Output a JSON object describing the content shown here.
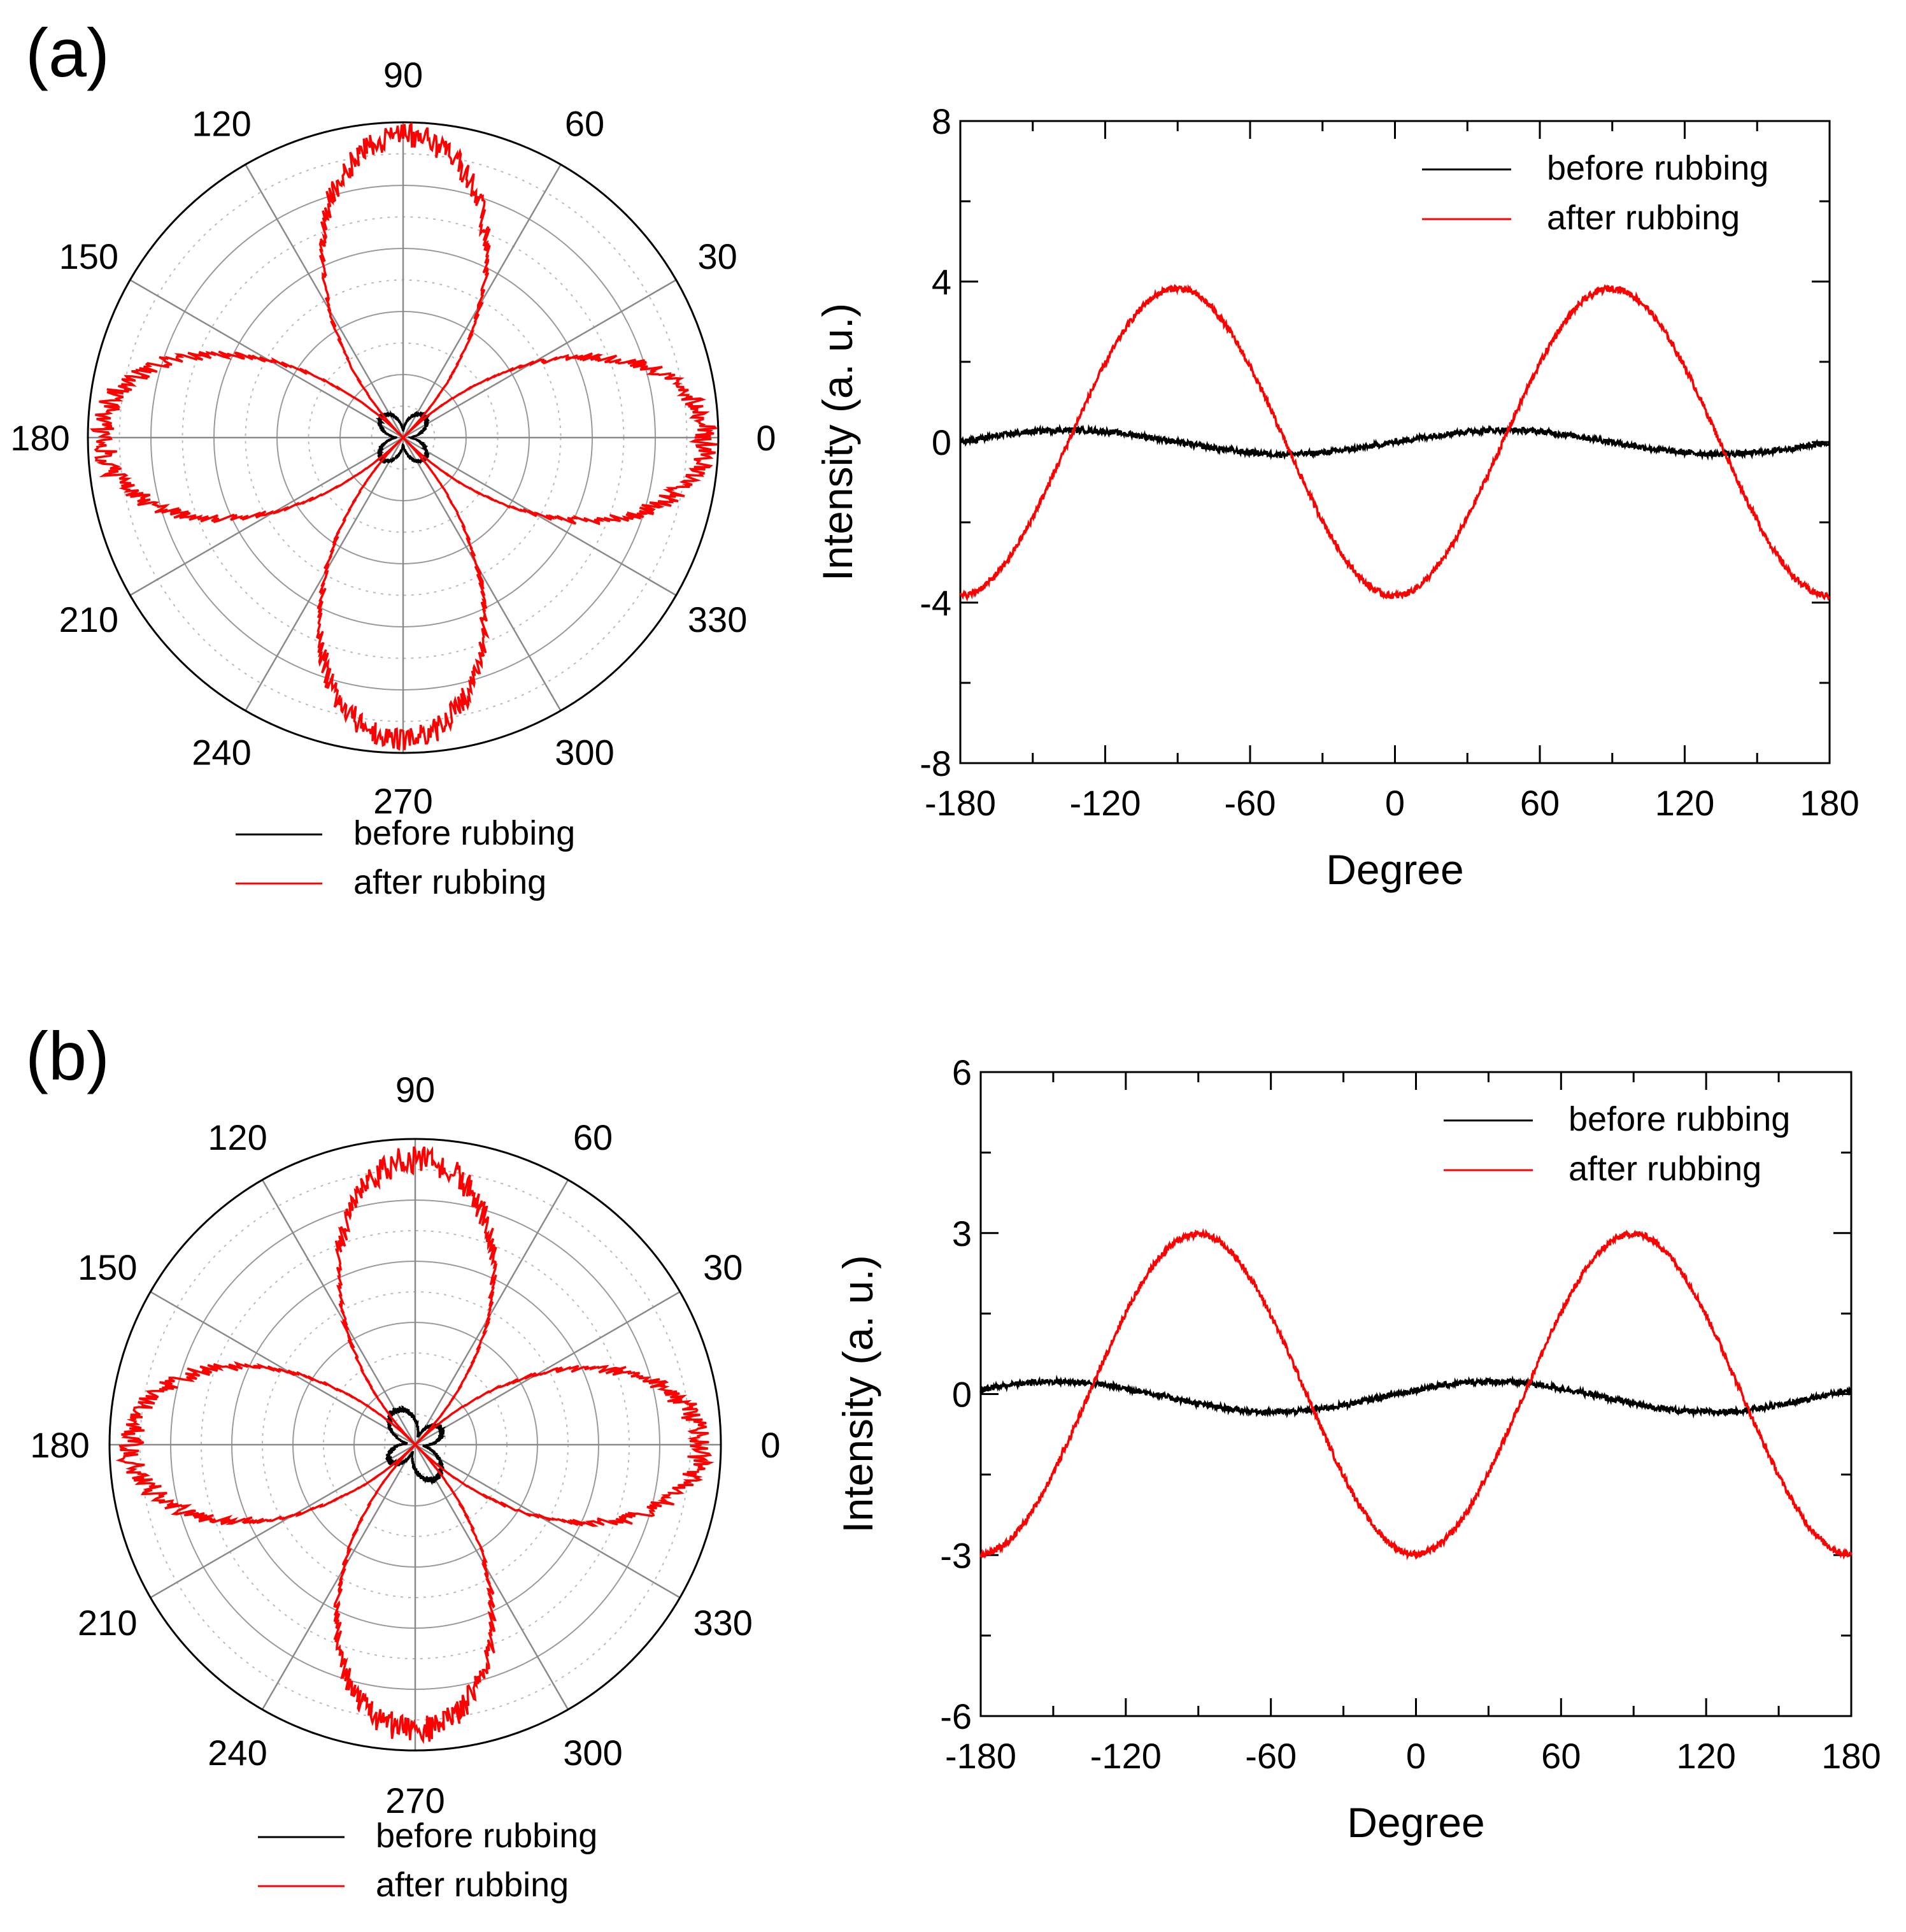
{
  "chart_data": [
    {
      "panel": "(a)",
      "type": "polar",
      "angle_ticks": [
        "0",
        "30",
        "60",
        "90",
        "120",
        "150",
        "180",
        "210",
        "240",
        "270",
        "300",
        "330"
      ],
      "r_max": 4,
      "series": [
        {
          "name": "before rubbing",
          "color": "#000000",
          "amp2": 0.15,
          "phase2": 0.0,
          "amp4": 0.15,
          "phase4": 0.0,
          "offset": 0.0
        },
        {
          "name": "after rubbing",
          "color": "#ff0000",
          "amp2": 0.9,
          "phase2": -130,
          "amp4": 2.95,
          "phase4": -137,
          "offset": 0.0
        }
      ],
      "legend": [
        "before rubbing",
        "after rubbing"
      ]
    },
    {
      "panel": "(a)",
      "type": "line",
      "xlabel": "Degree",
      "ylabel": "Intensity (a. u.)",
      "xlim": [
        -180,
        180
      ],
      "ylim": [
        -8,
        8
      ],
      "xticks": [
        "-180",
        "-120",
        "-60",
        "0",
        "60",
        "120",
        "180"
      ],
      "yticks": [
        "-8",
        "-4",
        "0",
        "4",
        "8"
      ],
      "series": [
        {
          "name": "before rubbing",
          "color": "#000000",
          "amp2": 0.15,
          "phase2": 0.0,
          "amp4": 0.15,
          "phase4": 0.0,
          "offset": 0.0
        },
        {
          "name": "after rubbing",
          "color": "#ff0000",
          "amp2": 0.9,
          "phase2": -130,
          "amp4": 2.95,
          "phase4": -137,
          "offset": 0.0
        }
      ],
      "legend": [
        "before rubbing",
        "after rubbing"
      ]
    },
    {
      "panel": "(b)",
      "type": "polar",
      "angle_ticks": [
        "0",
        "30",
        "60",
        "90",
        "120",
        "150",
        "180",
        "210",
        "240",
        "270",
        "300",
        "330"
      ],
      "r_max": 3.2,
      "series": [
        {
          "name": "before rubbing",
          "color": "#000000",
          "amp2": 0.2,
          "phase2": -20,
          "amp4": 0.1,
          "phase4": 0.0,
          "offset": -0.05
        },
        {
          "name": "after rubbing",
          "color": "#ff0000",
          "amp2": 0.75,
          "phase2": -130,
          "amp4": 2.25,
          "phase4": -137,
          "offset": 0.0
        }
      ],
      "legend": [
        "before rubbing",
        "after rubbing"
      ]
    },
    {
      "panel": "(b)",
      "type": "line",
      "xlabel": "Degree",
      "ylabel": "Intensity (a. u.)",
      "xlim": [
        -180,
        180
      ],
      "ylim": [
        -6,
        6
      ],
      "xticks": [
        "-180",
        "-120",
        "-60",
        "0",
        "60",
        "120",
        "180"
      ],
      "yticks": [
        "-6",
        "-3",
        "0",
        "3",
        "6"
      ],
      "series": [
        {
          "name": "before rubbing",
          "color": "#000000",
          "amp2": 0.2,
          "phase2": -20,
          "amp4": 0.1,
          "phase4": 0.0,
          "offset": -0.05
        },
        {
          "name": "after rubbing",
          "color": "#ff0000",
          "amp2": 0.75,
          "phase2": -130,
          "amp4": 2.25,
          "phase4": -137,
          "offset": 0.0
        }
      ],
      "legend": [
        "before rubbing",
        "after rubbing"
      ]
    }
  ],
  "labels": {
    "panel_a": "(a)",
    "panel_b": "(b)"
  }
}
